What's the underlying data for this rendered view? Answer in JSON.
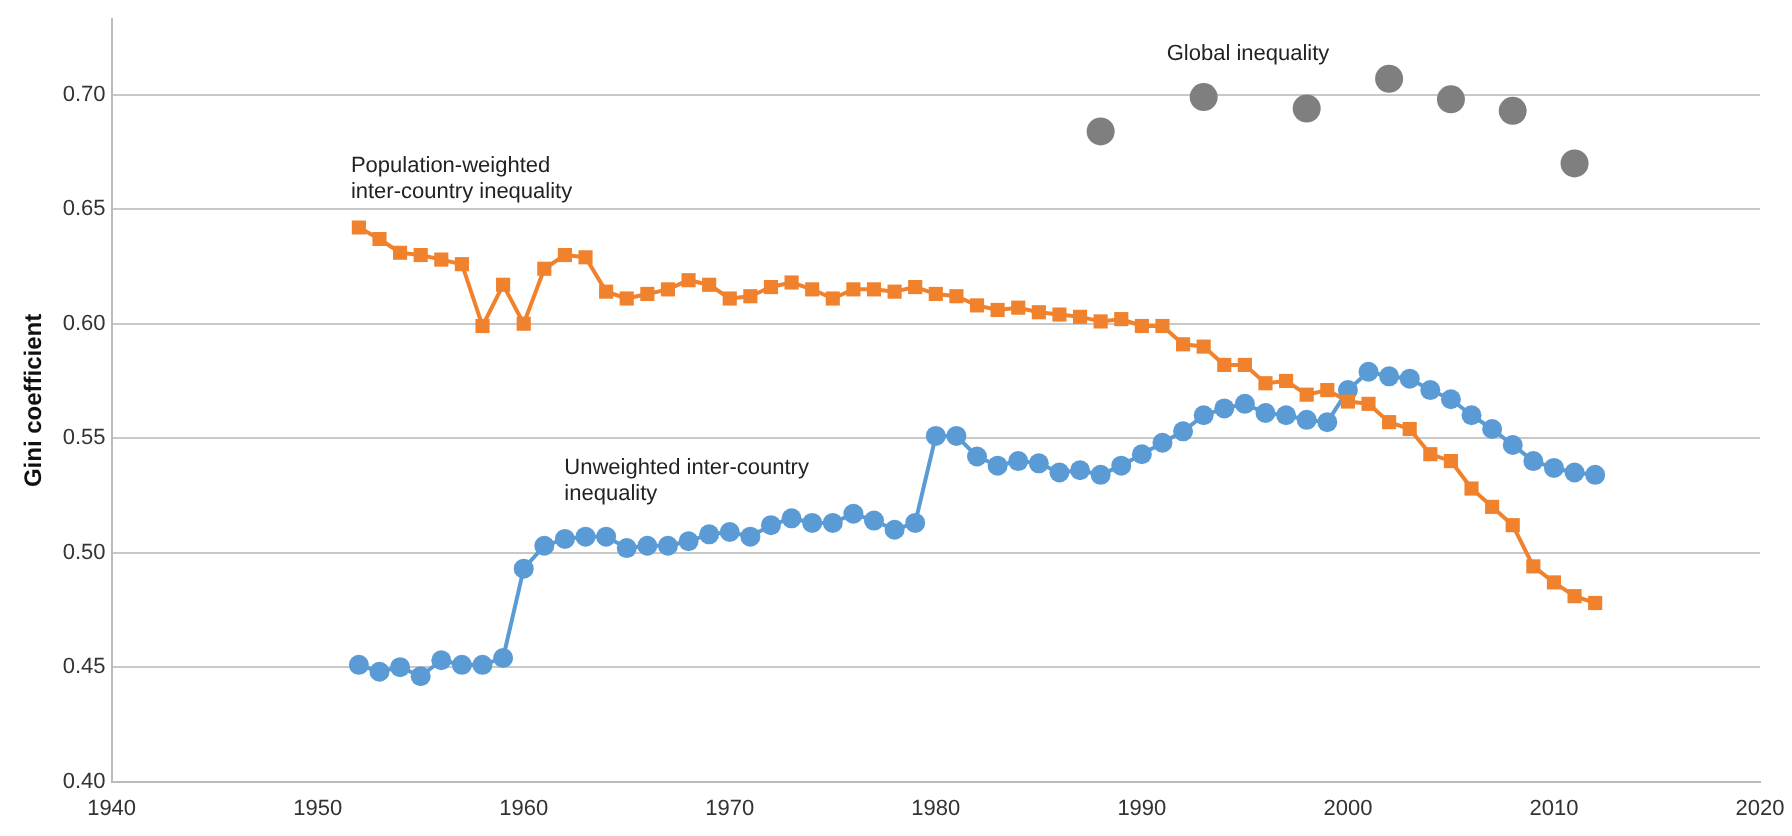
{
  "chart_data": {
    "type": "line",
    "ylabel": "Gini coefficient",
    "xlim": [
      1940,
      2020
    ],
    "xticks": [
      1940,
      1950,
      1960,
      1970,
      1980,
      1990,
      2000,
      2010,
      2020
    ],
    "ylim": [
      0.4,
      0.733
    ],
    "yticks": [
      {
        "value": 0.4,
        "label": "0.40"
      },
      {
        "value": 0.45,
        "label": "0.45"
      },
      {
        "value": 0.5,
        "label": "0.50"
      },
      {
        "value": 0.55,
        "label": "0.55"
      },
      {
        "value": 0.6,
        "label": "0.60"
      },
      {
        "value": 0.65,
        "label": "0.65"
      },
      {
        "value": 0.7,
        "label": "0.70"
      }
    ],
    "grid": "y",
    "legend": false,
    "series": [
      {
        "name": "Population-weighted inter-country inequality",
        "type": "line",
        "marker": "square",
        "color": "#f0822d",
        "x": [
          1952,
          1953,
          1954,
          1955,
          1956,
          1957,
          1958,
          1959,
          1960,
          1961,
          1962,
          1963,
          1964,
          1965,
          1966,
          1967,
          1968,
          1969,
          1970,
          1971,
          1972,
          1973,
          1974,
          1975,
          1976,
          1977,
          1978,
          1979,
          1980,
          1981,
          1982,
          1983,
          1984,
          1985,
          1986,
          1987,
          1988,
          1989,
          1990,
          1991,
          1992,
          1993,
          1994,
          1995,
          1996,
          1997,
          1998,
          1999,
          2000,
          2001,
          2002,
          2003,
          2004,
          2005,
          2006,
          2007,
          2008,
          2009,
          2010,
          2011,
          2012
        ],
        "values": [
          0.642,
          0.637,
          0.631,
          0.63,
          0.628,
          0.626,
          0.599,
          0.617,
          0.6,
          0.624,
          0.63,
          0.629,
          0.614,
          0.611,
          0.613,
          0.615,
          0.619,
          0.617,
          0.611,
          0.612,
          0.616,
          0.618,
          0.615,
          0.611,
          0.615,
          0.615,
          0.614,
          0.616,
          0.613,
          0.612,
          0.608,
          0.606,
          0.607,
          0.605,
          0.604,
          0.603,
          0.601,
          0.602,
          0.599,
          0.599,
          0.591,
          0.59,
          0.582,
          0.582,
          0.574,
          0.575,
          0.569,
          0.571,
          0.566,
          0.565,
          0.557,
          0.554,
          0.543,
          0.54,
          0.528,
          0.52,
          0.512,
          0.494,
          0.487,
          0.481,
          0.478
        ]
      },
      {
        "name": "Unweighted inter-country inequality",
        "type": "line",
        "marker": "circle",
        "color": "#5b9bd5",
        "x": [
          1952,
          1953,
          1954,
          1955,
          1956,
          1957,
          1958,
          1959,
          1960,
          1961,
          1962,
          1963,
          1964,
          1965,
          1966,
          1967,
          1968,
          1969,
          1970,
          1971,
          1972,
          1973,
          1974,
          1975,
          1976,
          1977,
          1978,
          1979,
          1980,
          1981,
          1982,
          1983,
          1984,
          1985,
          1986,
          1987,
          1988,
          1989,
          1990,
          1991,
          1992,
          1993,
          1994,
          1995,
          1996,
          1997,
          1998,
          1999,
          2000,
          2001,
          2002,
          2003,
          2004,
          2005,
          2006,
          2007,
          2008,
          2009,
          2010,
          2011,
          2012
        ],
        "values": [
          0.451,
          0.448,
          0.45,
          0.446,
          0.453,
          0.451,
          0.451,
          0.454,
          0.493,
          0.503,
          0.506,
          0.507,
          0.507,
          0.502,
          0.503,
          0.503,
          0.505,
          0.508,
          0.509,
          0.507,
          0.512,
          0.515,
          0.513,
          0.513,
          0.517,
          0.514,
          0.51,
          0.513,
          0.551,
          0.551,
          0.542,
          0.538,
          0.54,
          0.539,
          0.535,
          0.536,
          0.534,
          0.538,
          0.543,
          0.548,
          0.553,
          0.56,
          0.563,
          0.565,
          0.561,
          0.56,
          0.558,
          0.557,
          0.571,
          0.579,
          0.577,
          0.576,
          0.571,
          0.567,
          0.56,
          0.554,
          0.547,
          0.54,
          0.537,
          0.535,
          0.534
        ]
      },
      {
        "name": "Global inequality",
        "type": "scatter",
        "marker": "circle",
        "color": "#7f7f7f",
        "x": [
          1988,
          1993,
          1998,
          2002,
          2005,
          2008,
          2011
        ],
        "values": [
          0.684,
          0.699,
          0.694,
          0.707,
          0.698,
          0.693,
          0.67
        ]
      }
    ]
  }
}
